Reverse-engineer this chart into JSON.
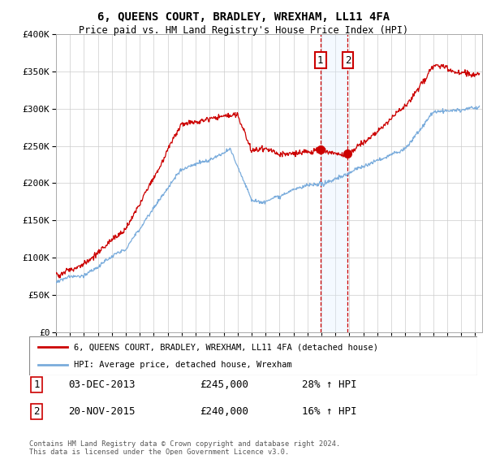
{
  "title": "6, QUEENS COURT, BRADLEY, WREXHAM, LL11 4FA",
  "subtitle": "Price paid vs. HM Land Registry's House Price Index (HPI)",
  "legend_line1": "6, QUEENS COURT, BRADLEY, WREXHAM, LL11 4FA (detached house)",
  "legend_line2": "HPI: Average price, detached house, Wrexham",
  "sale1_label": "1",
  "sale1_date": "03-DEC-2013",
  "sale1_price": "£245,000",
  "sale1_hpi": "28% ↑ HPI",
  "sale1_year": 2013.92,
  "sale1_value": 245000,
  "sale2_label": "2",
  "sale2_date": "20-NOV-2015",
  "sale2_price": "£240,000",
  "sale2_hpi": "16% ↑ HPI",
  "sale2_year": 2015.88,
  "sale2_value": 240000,
  "red_color": "#cc0000",
  "blue_color": "#7aacdc",
  "background_color": "#ffffff",
  "grid_color": "#cccccc",
  "shade_color": "#ddeeff",
  "footnote": "Contains HM Land Registry data © Crown copyright and database right 2024.\nThis data is licensed under the Open Government Licence v3.0.",
  "ylim": [
    0,
    400000
  ],
  "xlim_start": 1995,
  "xlim_end": 2025.5
}
